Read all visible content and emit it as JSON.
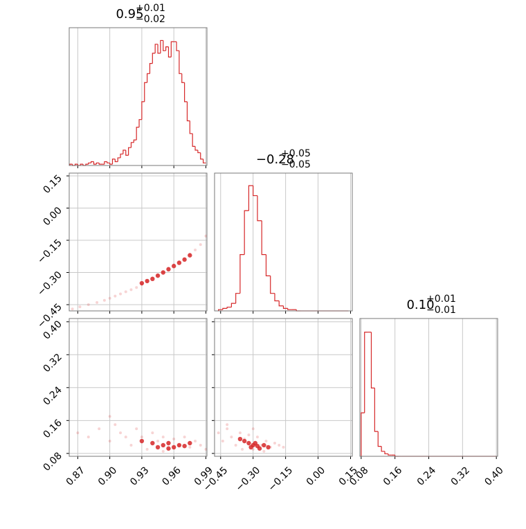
{
  "chart_data": [
    {
      "type": "histogram",
      "title": {
        "value": "0.95",
        "plus": "+0.01",
        "minus": "−0.02"
      },
      "color": "#d62728",
      "grid": true,
      "xlim": [
        0.862,
        0.991
      ],
      "xticks": [
        0.87,
        {
          "value": 0.9,
          "label": "0.90"
        },
        0.93,
        0.96,
        0.99
      ],
      "ylim": [
        0,
        108
      ],
      "xtick_labels": false,
      "bins": [
        0.8625,
        0.865,
        0.8675,
        0.87,
        0.8725,
        0.875,
        0.8775,
        0.88,
        0.8825,
        0.885,
        0.8875,
        0.89,
        0.8925,
        0.895,
        0.8975,
        0.9,
        0.9025,
        0.905,
        0.9075,
        0.91,
        0.9125,
        0.915,
        0.9175,
        0.92,
        0.9225,
        0.925,
        0.9275,
        0.93,
        0.9325,
        0.935,
        0.9375,
        0.94,
        0.9425,
        0.945,
        0.9475,
        0.95,
        0.9525,
        0.955,
        0.9575,
        0.96,
        0.9625,
        0.965,
        0.9675,
        0.97,
        0.9725,
        0.975,
        0.9775,
        0.98,
        0.9825,
        0.985,
        0.9875,
        0.99
      ],
      "counts": [
        1,
        0,
        1,
        0,
        1,
        0,
        1,
        2,
        3,
        1,
        2,
        1,
        1,
        3,
        2,
        1,
        5,
        3,
        6,
        9,
        12,
        8,
        14,
        18,
        20,
        30,
        36,
        50,
        65,
        72,
        80,
        88,
        95,
        88,
        98,
        90,
        93,
        85,
        97,
        97,
        90,
        72,
        65,
        50,
        35,
        25,
        15,
        12,
        10,
        5,
        2
      ]
    },
    {
      "type": "scatter",
      "color": "#d62728",
      "grid": true,
      "xlim": [
        0.862,
        0.991
      ],
      "xticks": [
        0.87,
        {
          "value": 0.9,
          "label": "0.90"
        },
        0.93,
        0.96,
        0.99
      ],
      "xtick_labels": false,
      "ylim": [
        -0.479,
        0.163
      ],
      "yticks": [
        0.15,
        {
          "value": 0,
          "label": "0.00"
        },
        {
          "value": -0.15,
          "label": "−0.15"
        },
        {
          "value": -0.3,
          "label": "−0.30"
        },
        {
          "value": -0.45,
          "label": "−0.45"
        }
      ],
      "ytick_labels": true,
      "series": [
        {
          "opacity": 0.2,
          "x": [
            0.865,
            0.872,
            0.88,
            0.888,
            0.895,
            0.9,
            0.905,
            0.91,
            0.915,
            0.92,
            0.925,
            0.93,
            0.935,
            0.94,
            0.945,
            0.95,
            0.955,
            0.96,
            0.965,
            0.97,
            0.975,
            0.98,
            0.985,
            0.99
          ],
          "y": [
            -0.47,
            -0.46,
            -0.45,
            -0.44,
            -0.43,
            -0.42,
            -0.41,
            -0.4,
            -0.39,
            -0.38,
            -0.37,
            -0.355,
            -0.34,
            -0.325,
            -0.31,
            -0.295,
            -0.28,
            -0.265,
            -0.25,
            -0.235,
            -0.215,
            -0.195,
            -0.17,
            -0.13
          ]
        },
        {
          "opacity": 0.85,
          "x": [
            0.93,
            0.935,
            0.94,
            0.945,
            0.95,
            0.955,
            0.96,
            0.965,
            0.97,
            0.975
          ],
          "y": [
            -0.35,
            -0.34,
            -0.33,
            -0.315,
            -0.3,
            -0.285,
            -0.27,
            -0.255,
            -0.24,
            -0.22
          ]
        }
      ]
    },
    {
      "type": "histogram",
      "title": {
        "value": "−0.28",
        "plus": "+0.05",
        "minus": "−0.05"
      },
      "color": "#d62728",
      "grid": true,
      "xlim": [
        -0.478,
        0.158
      ],
      "xticks": [
        {
          "value": -0.45,
          "label": "−0.45"
        },
        {
          "value": -0.3,
          "label": "−0.30"
        },
        {
          "value": -0.15,
          "label": "−0.15"
        },
        {
          "value": 0,
          "label": "0.00"
        },
        0.15
      ],
      "ylim": [
        0,
        110
      ],
      "xtick_labels": false,
      "bins": [
        -0.46,
        -0.44,
        -0.42,
        -0.4,
        -0.38,
        -0.36,
        -0.34,
        -0.32,
        -0.3,
        -0.28,
        -0.26,
        -0.24,
        -0.22,
        -0.2,
        -0.18,
        -0.16,
        -0.14,
        -0.12,
        -0.1,
        -0.08,
        -0.06,
        -0.04,
        -0.02,
        0,
        0.02,
        0.04,
        0.06,
        0.08,
        0.1,
        0.12,
        0.14
      ],
      "counts": [
        1,
        2,
        3,
        6,
        14,
        45,
        80,
        100,
        92,
        72,
        45,
        28,
        14,
        8,
        4,
        2,
        1,
        1,
        0,
        0,
        0,
        0,
        0,
        0,
        0,
        0,
        0,
        0,
        0,
        0
      ]
    },
    {
      "type": "scatter",
      "color": "#d62728",
      "grid": true,
      "xlim": [
        0.862,
        0.991
      ],
      "xticks": [
        0.87,
        {
          "value": 0.9,
          "label": "0.90"
        },
        0.93,
        0.96,
        0.99
      ],
      "xtick_labels": true,
      "ylim": [
        0.073,
        0.408
      ],
      "yticks": [
        {
          "value": 0.4,
          "label": "0.40"
        },
        0.32,
        0.24,
        0.16,
        0.08
      ],
      "ytick_labels": true,
      "series": [
        {
          "opacity": 0.2,
          "x": [
            0.87,
            0.88,
            0.89,
            0.9,
            0.905,
            0.91,
            0.915,
            0.92,
            0.925,
            0.93,
            0.935,
            0.94,
            0.945,
            0.95,
            0.955,
            0.96,
            0.965,
            0.97,
            0.975,
            0.98,
            0.985,
            0.99,
            0.9,
            0.95
          ],
          "y": [
            0.13,
            0.12,
            0.14,
            0.11,
            0.15,
            0.13,
            0.12,
            0.1,
            0.14,
            0.12,
            0.09,
            0.13,
            0.11,
            0.12,
            0.09,
            0.115,
            0.1,
            0.12,
            0.095,
            0.11,
            0.1,
            0.09,
            0.17,
            0.085
          ]
        },
        {
          "opacity": 0.85,
          "x": [
            0.93,
            0.94,
            0.945,
            0.95,
            0.955,
            0.96,
            0.965,
            0.97,
            0.975,
            0.955
          ],
          "y": [
            0.11,
            0.105,
            0.095,
            0.1,
            0.105,
            0.095,
            0.1,
            0.098,
            0.105,
            0.092
          ]
        }
      ]
    },
    {
      "type": "scatter",
      "color": "#d62728",
      "grid": true,
      "xlim": [
        -0.478,
        0.158
      ],
      "xticks": [
        {
          "value": -0.45,
          "label": "−0.45"
        },
        {
          "value": -0.3,
          "label": "−0.30"
        },
        {
          "value": -0.15,
          "label": "−0.15"
        },
        {
          "value": 0,
          "label": "0.00"
        },
        0.15
      ],
      "xtick_labels": true,
      "ylim": [
        0.073,
        0.408
      ],
      "yticks": [
        {
          "value": 0.4,
          "label": "0.40"
        },
        0.32,
        0.24,
        0.16,
        0.08
      ],
      "ytick_labels": false,
      "series": [
        {
          "opacity": 0.2,
          "x": [
            -0.46,
            -0.44,
            -0.42,
            -0.4,
            -0.38,
            -0.36,
            -0.35,
            -0.34,
            -0.32,
            -0.3,
            -0.28,
            -0.26,
            -0.24,
            -0.22,
            -0.2,
            -0.18,
            -0.16,
            -0.42,
            -0.3,
            -0.25
          ],
          "y": [
            0.13,
            0.11,
            0.14,
            0.12,
            0.1,
            0.13,
            0.09,
            0.115,
            0.125,
            0.09,
            0.12,
            0.1,
            0.11,
            0.095,
            0.105,
            0.1,
            0.095,
            0.15,
            0.14,
            0.085
          ]
        },
        {
          "opacity": 0.85,
          "x": [
            -0.36,
            -0.34,
            -0.32,
            -0.31,
            -0.3,
            -0.29,
            -0.28,
            -0.27,
            -0.25,
            -0.23
          ],
          "y": [
            0.115,
            0.11,
            0.105,
            0.095,
            0.1,
            0.105,
            0.098,
            0.092,
            0.1,
            0.095
          ]
        }
      ]
    },
    {
      "type": "histogram",
      "title": {
        "value": "0.10",
        "plus": "+0.01",
        "minus": "−0.01"
      },
      "color": "#d62728",
      "grid": true,
      "xlim": [
        0.077,
        0.403
      ],
      "xticks": [
        0.08,
        0.16,
        0.24,
        0.32,
        {
          "value": 0.4,
          "label": "0.40"
        }
      ],
      "ylim": [
        0,
        111
      ],
      "xtick_labels": true,
      "bins": [
        0.08,
        0.088,
        0.096,
        0.104,
        0.112,
        0.12,
        0.128,
        0.136,
        0.144,
        0.152,
        0.16,
        0.168,
        0.176,
        0.184,
        0.192,
        0.2,
        0.208,
        0.216,
        0.224,
        0.232,
        0.24,
        0.248,
        0.256,
        0.264,
        0.272,
        0.28,
        0.288,
        0.296,
        0.304,
        0.312,
        0.32,
        0.328,
        0.336,
        0.344,
        0.352,
        0.36,
        0.368,
        0.376,
        0.384,
        0.392,
        0.4
      ],
      "counts": [
        35,
        100,
        100,
        55,
        20,
        8,
        4,
        2,
        1,
        1,
        0,
        0,
        0,
        0,
        0,
        0,
        0,
        0,
        0,
        0,
        0,
        0,
        0,
        0,
        0,
        0,
        0,
        0,
        0,
        0,
        0,
        0,
        0,
        0,
        0,
        0,
        0,
        0,
        0,
        0
      ]
    }
  ]
}
